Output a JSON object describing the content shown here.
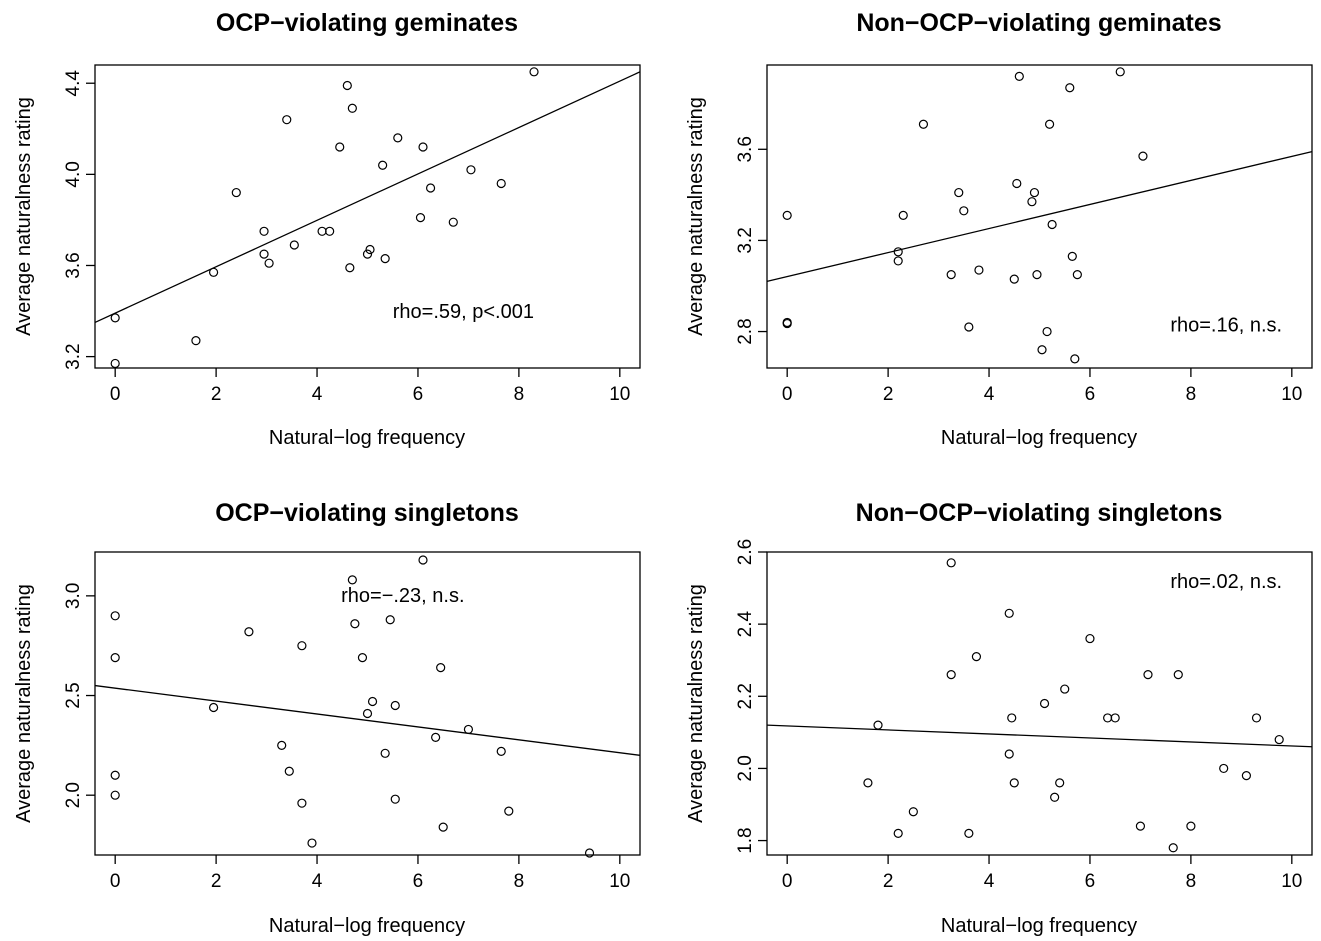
{
  "chart_data": [
    {
      "type": "scatter",
      "title": "OCP−violating geminates",
      "xlabel": "Natural−log frequency",
      "ylabel": "Average naturalness rating",
      "xlim": [
        -0.4,
        10.4
      ],
      "ylim": [
        3.15,
        4.48
      ],
      "xticks": [
        0,
        2,
        4,
        6,
        8,
        10
      ],
      "xtick_labels": [
        "0",
        "2",
        "4",
        "6",
        "8",
        "10"
      ],
      "yticks": [
        3.2,
        3.6,
        4.0,
        4.4
      ],
      "ytick_labels": [
        "3.2",
        "3.6",
        "4.0",
        "4.4"
      ],
      "annotation": "rho=.59, p<.001",
      "annotation_at": [
        6.9,
        3.37
      ],
      "fit_line": [
        [
          -0.4,
          3.35
        ],
        [
          10.4,
          4.45
        ]
      ],
      "points": [
        [
          0,
          3.17
        ],
        [
          0,
          3.37
        ],
        [
          1.6,
          3.27
        ],
        [
          1.95,
          3.57
        ],
        [
          2.4,
          3.92
        ],
        [
          2.95,
          3.75
        ],
        [
          2.95,
          3.65
        ],
        [
          3.05,
          3.61
        ],
        [
          3.4,
          4.24
        ],
        [
          3.55,
          3.69
        ],
        [
          4.1,
          3.75
        ],
        [
          4.25,
          3.75
        ],
        [
          4.45,
          4.12
        ],
        [
          4.6,
          4.39
        ],
        [
          4.65,
          3.59
        ],
        [
          4.7,
          4.29
        ],
        [
          5.0,
          3.65
        ],
        [
          5.05,
          3.67
        ],
        [
          5.3,
          4.04
        ],
        [
          5.35,
          3.63
        ],
        [
          5.6,
          4.16
        ],
        [
          6.05,
          3.81
        ],
        [
          6.1,
          4.12
        ],
        [
          6.25,
          3.94
        ],
        [
          6.7,
          3.79
        ],
        [
          7.05,
          4.02
        ],
        [
          7.65,
          3.96
        ],
        [
          8.3,
          4.45
        ]
      ]
    },
    {
      "type": "scatter",
      "title": "Non−OCP−violating geminates",
      "xlabel": "Natural−log frequency",
      "ylabel": "Average naturalness rating",
      "xlim": [
        -0.4,
        10.4
      ],
      "ylim": [
        2.64,
        3.97
      ],
      "xticks": [
        0,
        2,
        4,
        6,
        8,
        10
      ],
      "xtick_labels": [
        "0",
        "2",
        "4",
        "6",
        "8",
        "10"
      ],
      "yticks": [
        2.8,
        3.2,
        3.6
      ],
      "ytick_labels": [
        "2.8",
        "3.2",
        "3.6"
      ],
      "annotation": "rho=.16, n.s.",
      "annotation_at": [
        8.7,
        2.8
      ],
      "fit_line": [
        [
          -0.4,
          3.02
        ],
        [
          10.4,
          3.59
        ]
      ],
      "points": [
        [
          0,
          3.31
        ],
        [
          0,
          2.84
        ],
        [
          0,
          2.835
        ],
        [
          2.2,
          3.15
        ],
        [
          2.2,
          3.11
        ],
        [
          2.3,
          3.31
        ],
        [
          2.7,
          3.71
        ],
        [
          3.25,
          3.05
        ],
        [
          3.4,
          3.41
        ],
        [
          3.5,
          3.33
        ],
        [
          3.6,
          2.82
        ],
        [
          3.8,
          3.07
        ],
        [
          4.5,
          3.03
        ],
        [
          4.55,
          3.45
        ],
        [
          4.6,
          3.92
        ],
        [
          4.85,
          3.37
        ],
        [
          4.9,
          3.41
        ],
        [
          4.95,
          3.05
        ],
        [
          5.05,
          2.72
        ],
        [
          5.15,
          2.8
        ],
        [
          5.2,
          3.71
        ],
        [
          5.25,
          3.27
        ],
        [
          5.6,
          3.87
        ],
        [
          5.65,
          3.13
        ],
        [
          5.7,
          2.68
        ],
        [
          5.75,
          3.05
        ],
        [
          6.6,
          3.94
        ],
        [
          7.05,
          3.57
        ]
      ]
    },
    {
      "type": "scatter",
      "title": "OCP−violating singletons",
      "xlabel": "Natural−log frequency",
      "ylabel": "Average naturalness rating",
      "xlim": [
        -0.4,
        10.4
      ],
      "ylim": [
        1.7,
        3.22
      ],
      "xticks": [
        0,
        2,
        4,
        6,
        8,
        10
      ],
      "xtick_labels": [
        "0",
        "2",
        "4",
        "6",
        "8",
        "10"
      ],
      "yticks": [
        2.0,
        2.5,
        3.0
      ],
      "ytick_labels": [
        "2.0",
        "2.5",
        "3.0"
      ],
      "annotation": "rho=−.23, n.s.",
      "annotation_at": [
        5.7,
        2.97
      ],
      "fit_line": [
        [
          -0.4,
          2.55
        ],
        [
          10.4,
          2.2
        ]
      ],
      "points": [
        [
          0,
          2.9
        ],
        [
          0,
          2.69
        ],
        [
          0,
          2.1
        ],
        [
          0,
          2.0
        ],
        [
          1.95,
          2.44
        ],
        [
          2.65,
          2.82
        ],
        [
          3.3,
          2.25
        ],
        [
          3.45,
          2.12
        ],
        [
          3.7,
          2.75
        ],
        [
          3.7,
          1.96
        ],
        [
          3.9,
          1.76
        ],
        [
          4.7,
          3.08
        ],
        [
          4.75,
          2.86
        ],
        [
          4.9,
          2.69
        ],
        [
          5.0,
          2.41
        ],
        [
          5.1,
          2.47
        ],
        [
          5.35,
          2.21
        ],
        [
          5.45,
          2.88
        ],
        [
          5.55,
          2.45
        ],
        [
          5.55,
          1.98
        ],
        [
          6.1,
          3.18
        ],
        [
          6.35,
          2.29
        ],
        [
          6.45,
          2.64
        ],
        [
          6.5,
          1.84
        ],
        [
          7.0,
          2.33
        ],
        [
          7.65,
          2.22
        ],
        [
          7.8,
          1.92
        ],
        [
          9.4,
          1.71
        ]
      ]
    },
    {
      "type": "scatter",
      "title": "Non−OCP−violating singletons",
      "xlabel": "Natural−log frequency",
      "ylabel": "Average naturalness rating",
      "xlim": [
        -0.4,
        10.4
      ],
      "ylim": [
        1.76,
        2.6
      ],
      "xticks": [
        0,
        2,
        4,
        6,
        8,
        10
      ],
      "xtick_labels": [
        "0",
        "2",
        "4",
        "6",
        "8",
        "10"
      ],
      "yticks": [
        1.8,
        2.0,
        2.2,
        2.4,
        2.6
      ],
      "ytick_labels": [
        "1.8",
        "2.0",
        "2.2",
        "2.4",
        "2.6"
      ],
      "annotation": "rho=.02, n.s.",
      "annotation_at": [
        8.7,
        2.5
      ],
      "fit_line": [
        [
          -0.4,
          2.12
        ],
        [
          10.4,
          2.06
        ]
      ],
      "points": [
        [
          1.6,
          1.96
        ],
        [
          1.8,
          2.12
        ],
        [
          2.2,
          1.82
        ],
        [
          2.5,
          1.88
        ],
        [
          3.25,
          2.57
        ],
        [
          3.25,
          2.26
        ],
        [
          3.6,
          1.82
        ],
        [
          3.75,
          2.31
        ],
        [
          4.4,
          2.43
        ],
        [
          4.4,
          2.04
        ],
        [
          4.45,
          2.14
        ],
        [
          4.5,
          1.96
        ],
        [
          5.1,
          2.18
        ],
        [
          5.3,
          1.92
        ],
        [
          5.4,
          1.96
        ],
        [
          5.5,
          2.22
        ],
        [
          6.0,
          2.36
        ],
        [
          6.35,
          2.14
        ],
        [
          6.5,
          2.14
        ],
        [
          7.0,
          1.84
        ],
        [
          7.15,
          2.26
        ],
        [
          7.65,
          1.78
        ],
        [
          7.75,
          2.26
        ],
        [
          8.0,
          1.84
        ],
        [
          8.65,
          2.0
        ],
        [
          9.1,
          1.98
        ],
        [
          9.3,
          2.14
        ],
        [
          9.75,
          2.08
        ]
      ]
    }
  ]
}
